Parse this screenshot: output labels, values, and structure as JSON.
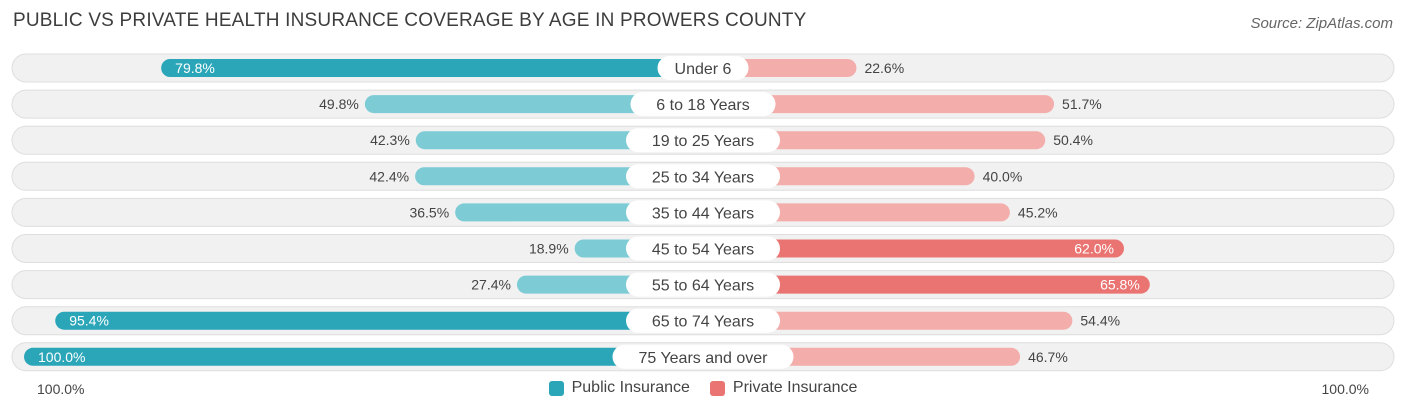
{
  "title": "PUBLIC VS PRIVATE HEALTH INSURANCE COVERAGE BY AGE IN PROWERS COUNTY",
  "source": "Source: ZipAtlas.com",
  "axis": {
    "left_label": "100.0%",
    "right_label": "100.0%"
  },
  "legend": {
    "public_label": "Public Insurance",
    "private_label": "Private Insurance"
  },
  "colors": {
    "public_strong": "#2ba6b8",
    "public_light": "#7ccbd5",
    "private_strong": "#ea7472",
    "private_light": "#f3adab",
    "row_bg": "#f1f1f1",
    "row_border": "#dedede"
  },
  "chart_data": {
    "type": "bar",
    "orientation": "horizontal-diverging",
    "title": "PUBLIC VS PRIVATE HEALTH INSURANCE COVERAGE BY AGE IN PROWERS COUNTY",
    "xlim": [
      0,
      100
    ],
    "categories": [
      "Under 6",
      "6 to 18 Years",
      "19 to 25 Years",
      "25 to 34 Years",
      "35 to 44 Years",
      "45 to 54 Years",
      "55 to 64 Years",
      "65 to 74 Years",
      "75 Years and over"
    ],
    "series": [
      {
        "name": "Public Insurance",
        "values": [
          79.8,
          49.8,
          42.3,
          42.4,
          36.5,
          18.9,
          27.4,
          95.4,
          100.0
        ],
        "labels": [
          "79.8%",
          "49.8%",
          "42.3%",
          "42.4%",
          "36.5%",
          "18.9%",
          "27.4%",
          "95.4%",
          "100.0%"
        ]
      },
      {
        "name": "Private Insurance",
        "values": [
          22.6,
          51.7,
          50.4,
          40.0,
          45.2,
          62.0,
          65.8,
          54.4,
          46.7
        ],
        "labels": [
          "22.6%",
          "51.7%",
          "50.4%",
          "40.0%",
          "45.2%",
          "62.0%",
          "65.8%",
          "54.4%",
          "46.7%"
        ]
      }
    ]
  }
}
